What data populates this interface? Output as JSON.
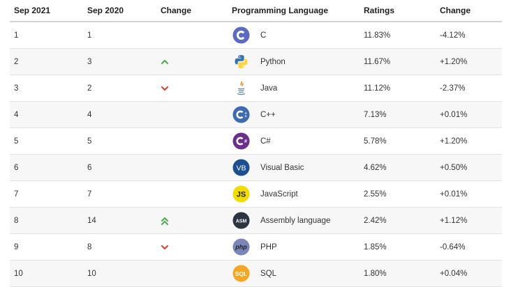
{
  "header": {
    "col_sep2021": "Sep 2021",
    "col_sep2020": "Sep 2020",
    "col_change": "Change",
    "col_language": "Programming Language",
    "col_ratings": "Ratings",
    "col_change2": "Change"
  },
  "rows": [
    {
      "rank_2021": "1",
      "rank_2020": "1",
      "trend": "none",
      "language": "C",
      "rating": "11.83%",
      "change": "-4.12%",
      "icon": "c-logo-icon"
    },
    {
      "rank_2021": "2",
      "rank_2020": "3",
      "trend": "up",
      "language": "Python",
      "rating": "11.67%",
      "change": "+1.20%",
      "icon": "python-logo-icon"
    },
    {
      "rank_2021": "3",
      "rank_2020": "2",
      "trend": "down",
      "language": "Java",
      "rating": "11.12%",
      "change": "-2.37%",
      "icon": "java-logo-icon"
    },
    {
      "rank_2021": "4",
      "rank_2020": "4",
      "trend": "none",
      "language": "C++",
      "rating": "7.13%",
      "change": "+0.01%",
      "icon": "cpp-logo-icon"
    },
    {
      "rank_2021": "5",
      "rank_2020": "5",
      "trend": "none",
      "language": "C#",
      "rating": "5.78%",
      "change": "+1.20%",
      "icon": "csharp-logo-icon"
    },
    {
      "rank_2021": "6",
      "rank_2020": "6",
      "trend": "none",
      "language": "Visual Basic",
      "rating": "4.62%",
      "change": "+0.50%",
      "icon": "visual-basic-logo-icon",
      "logo_text": "VB"
    },
    {
      "rank_2021": "7",
      "rank_2020": "7",
      "trend": "none",
      "language": "JavaScript",
      "rating": "2.55%",
      "change": "+0.01%",
      "icon": "javascript-logo-icon",
      "logo_text": "JS"
    },
    {
      "rank_2021": "8",
      "rank_2020": "14",
      "trend": "double-up",
      "language": "Assembly language",
      "rating": "2.42%",
      "change": "+1.12%",
      "icon": "assembly-logo-icon",
      "logo_text": "ASM"
    },
    {
      "rank_2021": "9",
      "rank_2020": "8",
      "trend": "down",
      "language": "PHP",
      "rating": "1.85%",
      "change": "-0.64%",
      "icon": "php-logo-icon",
      "logo_text": "php"
    },
    {
      "rank_2021": "10",
      "rank_2020": "10",
      "trend": "none",
      "language": "SQL",
      "rating": "1.80%",
      "change": "+0.04%",
      "icon": "sql-logo-icon",
      "logo_text": "SQL"
    }
  ],
  "colors": {
    "trend_up": "#4caf50",
    "trend_down": "#e0462f"
  }
}
